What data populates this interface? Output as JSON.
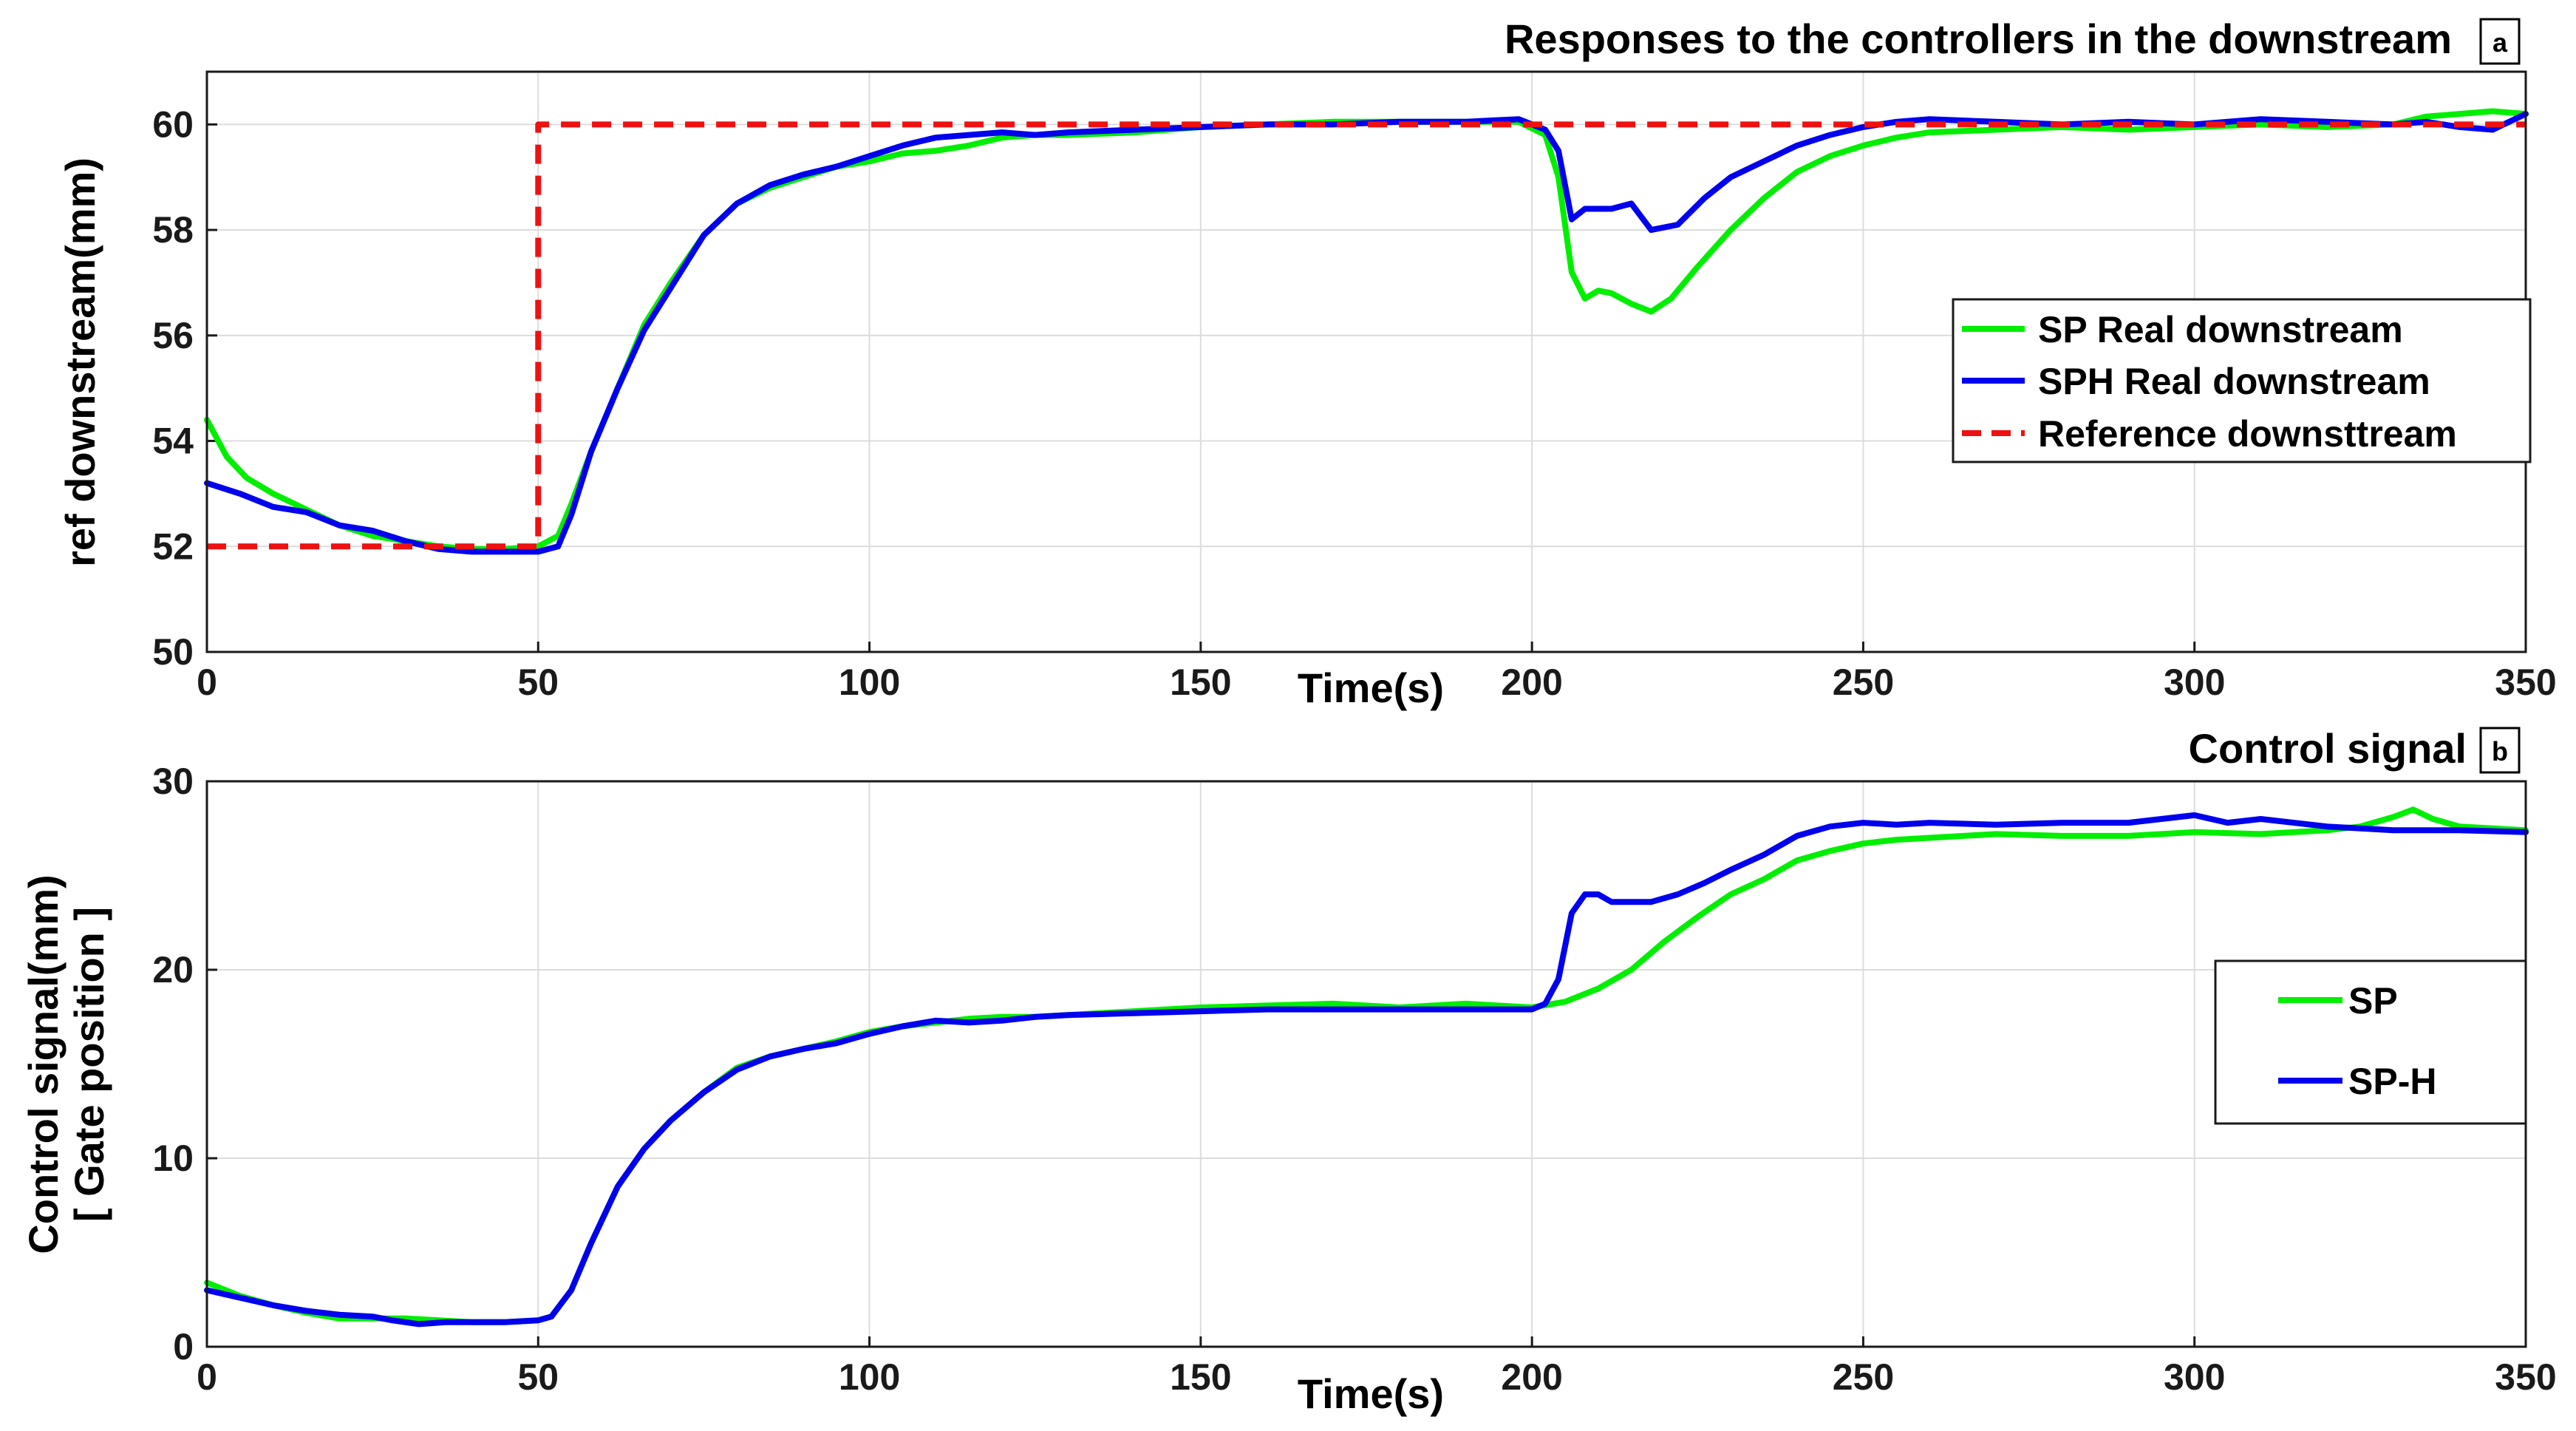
{
  "chart_data": [
    {
      "id": "a",
      "type": "line",
      "title": "Responses to the controllers in the downstream",
      "badge": "a",
      "xlabel": "Time(s)",
      "ylabel": "ref downstream(mm)",
      "xlim": [
        0,
        350
      ],
      "ylim": [
        50,
        61
      ],
      "xticks": [
        0,
        50,
        100,
        150,
        200,
        250,
        300,
        350
      ],
      "yticks": [
        50,
        52,
        54,
        56,
        58,
        60
      ],
      "grid": true,
      "legend_position": "right-middle",
      "series": [
        {
          "name": "SP  Real downstream",
          "color": "#00ee00",
          "style": "solid",
          "points": [
            [
              0,
              54.4
            ],
            [
              3,
              53.7
            ],
            [
              6,
              53.3
            ],
            [
              10,
              53.0
            ],
            [
              15,
              52.7
            ],
            [
              20,
              52.4
            ],
            [
              25,
              52.2
            ],
            [
              30,
              52.1
            ],
            [
              35,
              52.0
            ],
            [
              40,
              51.95
            ],
            [
              45,
              51.95
            ],
            [
              50,
              52.0
            ],
            [
              53,
              52.2
            ],
            [
              55,
              52.8
            ],
            [
              58,
              53.8
            ],
            [
              62,
              55.0
            ],
            [
              66,
              56.2
            ],
            [
              70,
              57.0
            ],
            [
              75,
              57.9
            ],
            [
              80,
              58.5
            ],
            [
              85,
              58.8
            ],
            [
              90,
              59.0
            ],
            [
              95,
              59.2
            ],
            [
              100,
              59.3
            ],
            [
              105,
              59.45
            ],
            [
              110,
              59.5
            ],
            [
              115,
              59.6
            ],
            [
              120,
              59.75
            ],
            [
              125,
              59.8
            ],
            [
              130,
              59.8
            ],
            [
              140,
              59.85
            ],
            [
              150,
              59.95
            ],
            [
              160,
              60.0
            ],
            [
              170,
              60.05
            ],
            [
              180,
              60.05
            ],
            [
              190,
              60.05
            ],
            [
              198,
              60.05
            ],
            [
              202,
              59.8
            ],
            [
              204,
              59.0
            ],
            [
              206,
              57.2
            ],
            [
              208,
              56.7
            ],
            [
              210,
              56.85
            ],
            [
              212,
              56.8
            ],
            [
              215,
              56.6
            ],
            [
              218,
              56.45
            ],
            [
              221,
              56.7
            ],
            [
              225,
              57.3
            ],
            [
              230,
              58.0
            ],
            [
              235,
              58.6
            ],
            [
              240,
              59.1
            ],
            [
              245,
              59.4
            ],
            [
              250,
              59.6
            ],
            [
              255,
              59.75
            ],
            [
              260,
              59.85
            ],
            [
              270,
              59.9
            ],
            [
              280,
              59.95
            ],
            [
              290,
              59.9
            ],
            [
              300,
              59.95
            ],
            [
              310,
              60.0
            ],
            [
              320,
              59.95
            ],
            [
              330,
              60.0
            ],
            [
              335,
              60.15
            ],
            [
              340,
              60.2
            ],
            [
              345,
              60.25
            ],
            [
              350,
              60.2
            ]
          ]
        },
        {
          "name": "SPH Real downstream",
          "color": "#0000ee",
          "style": "solid",
          "points": [
            [
              0,
              53.2
            ],
            [
              5,
              53.0
            ],
            [
              10,
              52.75
            ],
            [
              15,
              52.65
            ],
            [
              20,
              52.4
            ],
            [
              25,
              52.3
            ],
            [
              30,
              52.1
            ],
            [
              35,
              51.95
            ],
            [
              40,
              51.9
            ],
            [
              45,
              51.9
            ],
            [
              50,
              51.9
            ],
            [
              53,
              52.0
            ],
            [
              55,
              52.6
            ],
            [
              58,
              53.8
            ],
            [
              62,
              55.0
            ],
            [
              66,
              56.1
            ],
            [
              70,
              56.9
            ],
            [
              75,
              57.9
            ],
            [
              80,
              58.5
            ],
            [
              85,
              58.85
            ],
            [
              90,
              59.05
            ],
            [
              95,
              59.2
            ],
            [
              100,
              59.4
            ],
            [
              105,
              59.6
            ],
            [
              110,
              59.75
            ],
            [
              115,
              59.8
            ],
            [
              120,
              59.85
            ],
            [
              125,
              59.8
            ],
            [
              130,
              59.85
            ],
            [
              140,
              59.9
            ],
            [
              150,
              59.95
            ],
            [
              160,
              60.0
            ],
            [
              170,
              60.0
            ],
            [
              180,
              60.05
            ],
            [
              190,
              60.05
            ],
            [
              198,
              60.1
            ],
            [
              202,
              59.9
            ],
            [
              204,
              59.5
            ],
            [
              206,
              58.2
            ],
            [
              208,
              58.4
            ],
            [
              212,
              58.4
            ],
            [
              215,
              58.5
            ],
            [
              218,
              58.0
            ],
            [
              222,
              58.1
            ],
            [
              226,
              58.6
            ],
            [
              230,
              59.0
            ],
            [
              235,
              59.3
            ],
            [
              240,
              59.6
            ],
            [
              245,
              59.8
            ],
            [
              250,
              59.95
            ],
            [
              255,
              60.05
            ],
            [
              260,
              60.1
            ],
            [
              270,
              60.05
            ],
            [
              280,
              60.0
            ],
            [
              290,
              60.05
            ],
            [
              300,
              60.0
            ],
            [
              310,
              60.1
            ],
            [
              320,
              60.05
            ],
            [
              330,
              60.0
            ],
            [
              335,
              60.05
            ],
            [
              340,
              59.95
            ],
            [
              345,
              59.9
            ],
            [
              350,
              60.2
            ]
          ]
        },
        {
          "name": "Reference downsttream",
          "color": "#ee1111",
          "style": "dashed",
          "points": [
            [
              0,
              52
            ],
            [
              50,
              52
            ],
            [
              50,
              60
            ],
            [
              350,
              60
            ]
          ]
        }
      ]
    },
    {
      "id": "b",
      "type": "line",
      "title": "Control signal",
      "badge": "b",
      "xlabel": "Time(s)",
      "ylabel": "Control signal(mm)",
      "ylabel2": "[ Gate position ]",
      "xlim": [
        0,
        350
      ],
      "ylim": [
        0,
        30
      ],
      "xticks": [
        0,
        50,
        100,
        150,
        200,
        250,
        300,
        350
      ],
      "yticks": [
        0,
        10,
        20,
        30
      ],
      "grid": true,
      "legend_position": "right-middle",
      "series": [
        {
          "name": "SP",
          "color": "#00ee00",
          "style": "solid",
          "points": [
            [
              0,
              3.4
            ],
            [
              5,
              2.7
            ],
            [
              10,
              2.2
            ],
            [
              15,
              1.8
            ],
            [
              20,
              1.5
            ],
            [
              25,
              1.5
            ],
            [
              30,
              1.5
            ],
            [
              35,
              1.4
            ],
            [
              40,
              1.3
            ],
            [
              45,
              1.3
            ],
            [
              50,
              1.4
            ],
            [
              52,
              1.6
            ],
            [
              55,
              3.0
            ],
            [
              58,
              5.5
            ],
            [
              62,
              8.5
            ],
            [
              66,
              10.5
            ],
            [
              70,
              12.0
            ],
            [
              75,
              13.5
            ],
            [
              80,
              14.8
            ],
            [
              85,
              15.4
            ],
            [
              90,
              15.8
            ],
            [
              95,
              16.2
            ],
            [
              100,
              16.7
            ],
            [
              105,
              17.0
            ],
            [
              110,
              17.2
            ],
            [
              115,
              17.4
            ],
            [
              120,
              17.5
            ],
            [
              125,
              17.5
            ],
            [
              130,
              17.6
            ],
            [
              140,
              17.8
            ],
            [
              150,
              18.0
            ],
            [
              160,
              18.1
            ],
            [
              170,
              18.2
            ],
            [
              180,
              18.0
            ],
            [
              190,
              18.2
            ],
            [
              200,
              18.0
            ],
            [
              205,
              18.3
            ],
            [
              210,
              19.0
            ],
            [
              215,
              20.0
            ],
            [
              220,
              21.5
            ],
            [
              225,
              22.8
            ],
            [
              230,
              24.0
            ],
            [
              235,
              24.8
            ],
            [
              240,
              25.8
            ],
            [
              245,
              26.3
            ],
            [
              250,
              26.7
            ],
            [
              255,
              26.9
            ],
            [
              260,
              27.0
            ],
            [
              270,
              27.2
            ],
            [
              280,
              27.1
            ],
            [
              290,
              27.1
            ],
            [
              300,
              27.3
            ],
            [
              310,
              27.2
            ],
            [
              320,
              27.4
            ],
            [
              325,
              27.6
            ],
            [
              330,
              28.1
            ],
            [
              333,
              28.5
            ],
            [
              336,
              28.0
            ],
            [
              340,
              27.6
            ],
            [
              345,
              27.5
            ],
            [
              350,
              27.4
            ]
          ]
        },
        {
          "name": "SP-H",
          "color": "#0000ee",
          "style": "solid",
          "points": [
            [
              0,
              3.0
            ],
            [
              5,
              2.6
            ],
            [
              10,
              2.2
            ],
            [
              15,
              1.9
            ],
            [
              20,
              1.7
            ],
            [
              25,
              1.6
            ],
            [
              28,
              1.4
            ],
            [
              32,
              1.2
            ],
            [
              36,
              1.3
            ],
            [
              40,
              1.3
            ],
            [
              45,
              1.3
            ],
            [
              50,
              1.4
            ],
            [
              52,
              1.6
            ],
            [
              55,
              3.0
            ],
            [
              58,
              5.5
            ],
            [
              62,
              8.5
            ],
            [
              66,
              10.5
            ],
            [
              70,
              12.0
            ],
            [
              75,
              13.5
            ],
            [
              80,
              14.7
            ],
            [
              85,
              15.4
            ],
            [
              90,
              15.8
            ],
            [
              95,
              16.1
            ],
            [
              100,
              16.6
            ],
            [
              105,
              17.0
            ],
            [
              110,
              17.3
            ],
            [
              115,
              17.2
            ],
            [
              120,
              17.3
            ],
            [
              125,
              17.5
            ],
            [
              130,
              17.6
            ],
            [
              140,
              17.7
            ],
            [
              150,
              17.8
            ],
            [
              160,
              17.9
            ],
            [
              170,
              17.9
            ],
            [
              180,
              17.9
            ],
            [
              190,
              17.9
            ],
            [
              200,
              17.9
            ],
            [
              202,
              18.2
            ],
            [
              204,
              19.5
            ],
            [
              206,
              23.0
            ],
            [
              208,
              24.0
            ],
            [
              210,
              24.0
            ],
            [
              212,
              23.6
            ],
            [
              215,
              23.6
            ],
            [
              218,
              23.6
            ],
            [
              222,
              24.0
            ],
            [
              226,
              24.6
            ],
            [
              230,
              25.3
            ],
            [
              235,
              26.1
            ],
            [
              240,
              27.1
            ],
            [
              245,
              27.6
            ],
            [
              250,
              27.8
            ],
            [
              255,
              27.7
            ],
            [
              260,
              27.8
            ],
            [
              270,
              27.7
            ],
            [
              280,
              27.8
            ],
            [
              290,
              27.8
            ],
            [
              300,
              28.2
            ],
            [
              305,
              27.8
            ],
            [
              310,
              28.0
            ],
            [
              320,
              27.6
            ],
            [
              330,
              27.4
            ],
            [
              340,
              27.4
            ],
            [
              350,
              27.3
            ]
          ]
        }
      ]
    }
  ]
}
